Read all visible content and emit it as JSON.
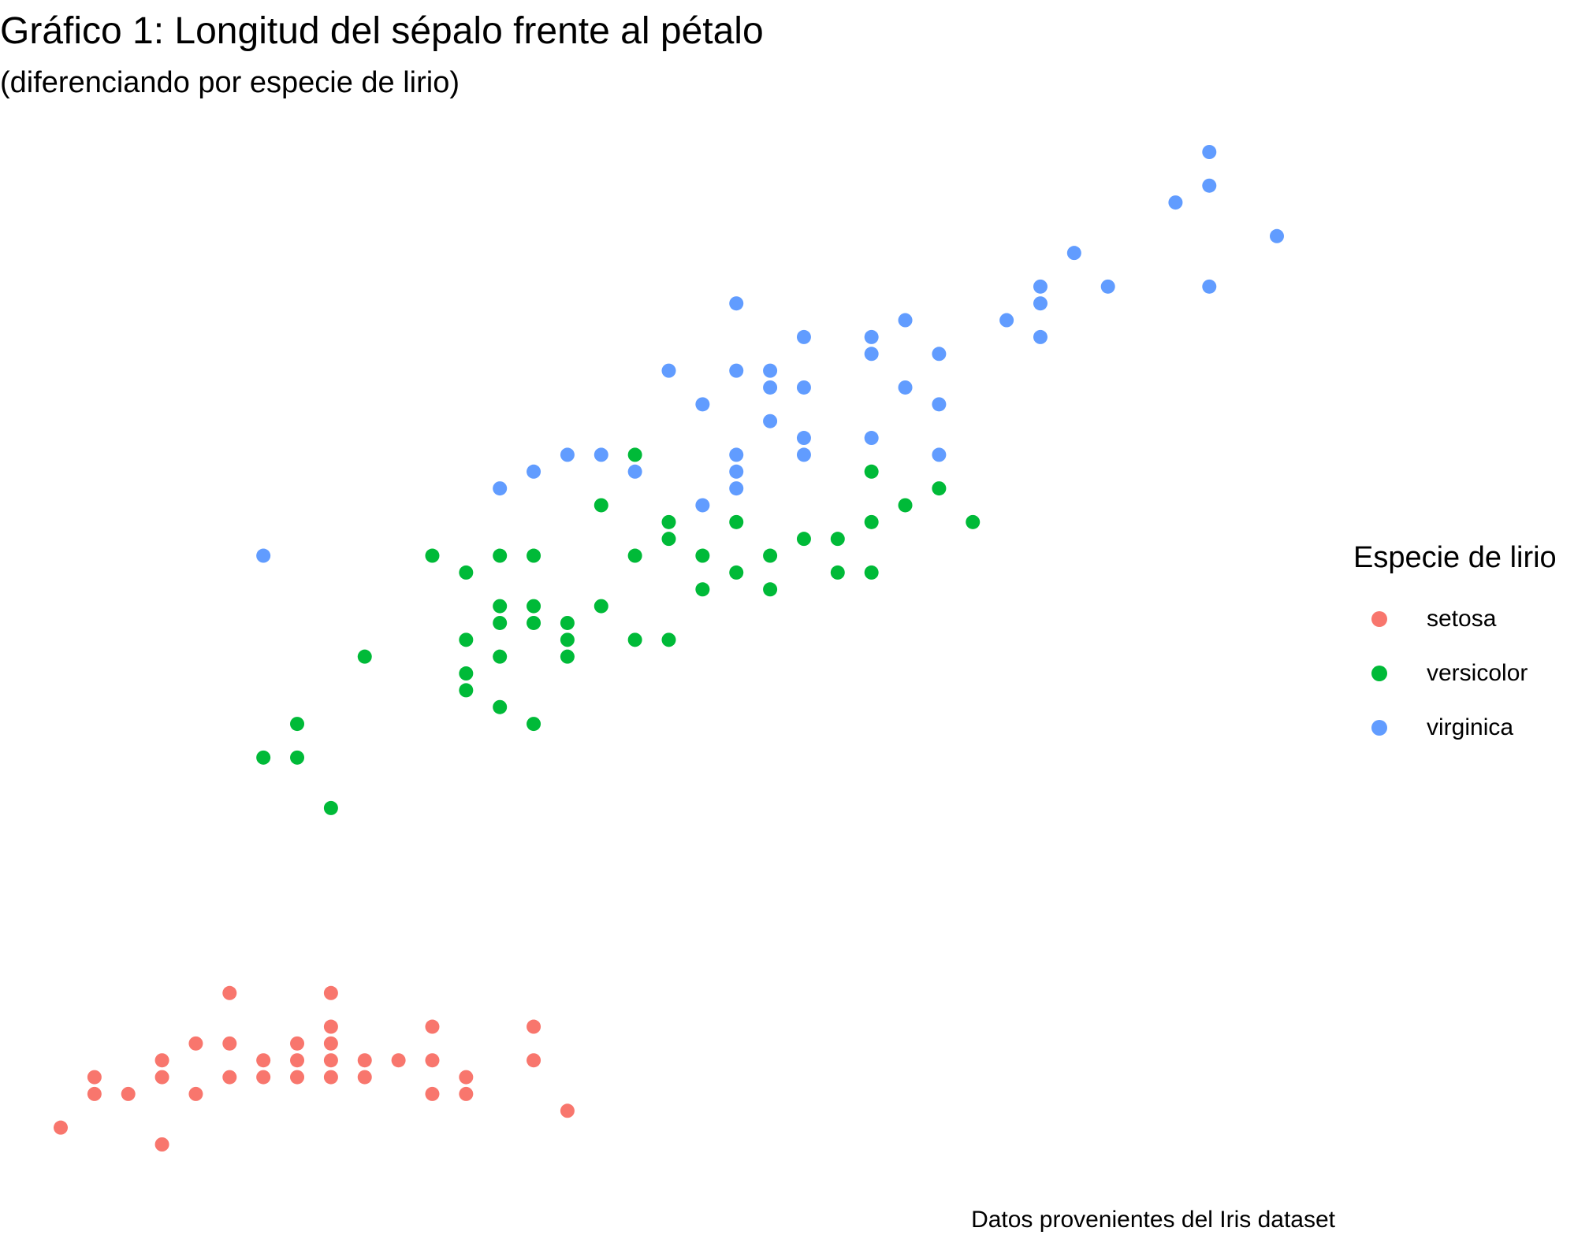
{
  "title": "Gráfico 1: Longitud del sépalo frente al pétalo",
  "subtitle": "(diferenciando por especie de lirio)",
  "caption": "Datos provenientes del Iris dataset",
  "legend": {
    "title": "Especie de lirio",
    "items": [
      {
        "label": "setosa",
        "color": "#F8766D"
      },
      {
        "label": "versicolor",
        "color": "#00BA38"
      },
      {
        "label": "virginica",
        "color": "#619CFF"
      }
    ]
  },
  "chart_data": {
    "type": "scatter",
    "title": "Gráfico 1: Longitud del sépalo frente al pétalo",
    "subtitle": "(diferenciando por especie de lirio)",
    "xlabel": "",
    "ylabel": "",
    "xlim": [
      4.3,
      7.9
    ],
    "ylim": [
      1.0,
      6.9
    ],
    "grid": false,
    "axes_visible": false,
    "legend_position": "right",
    "series": [
      {
        "name": "setosa",
        "color": "#F8766D",
        "points": [
          [
            4.3,
            1.1
          ],
          [
            4.4,
            1.3
          ],
          [
            4.4,
            1.4
          ],
          [
            4.5,
            1.3
          ],
          [
            4.6,
            1.0
          ],
          [
            4.6,
            1.4
          ],
          [
            4.6,
            1.5
          ],
          [
            4.7,
            1.3
          ],
          [
            4.7,
            1.6
          ],
          [
            4.8,
            1.4
          ],
          [
            4.8,
            1.6
          ],
          [
            4.8,
            1.9
          ],
          [
            4.9,
            1.4
          ],
          [
            4.9,
            1.5
          ],
          [
            5.0,
            1.4
          ],
          [
            5.0,
            1.5
          ],
          [
            5.0,
            1.6
          ],
          [
            5.1,
            1.4
          ],
          [
            5.1,
            1.5
          ],
          [
            5.1,
            1.6
          ],
          [
            5.1,
            1.7
          ],
          [
            5.1,
            1.9
          ],
          [
            5.2,
            1.4
          ],
          [
            5.2,
            1.5
          ],
          [
            5.3,
            1.5
          ],
          [
            5.4,
            1.3
          ],
          [
            5.4,
            1.5
          ],
          [
            5.4,
            1.7
          ],
          [
            5.5,
            1.3
          ],
          [
            5.5,
            1.4
          ],
          [
            5.7,
            1.5
          ],
          [
            5.7,
            1.7
          ],
          [
            5.8,
            1.2
          ]
        ]
      },
      {
        "name": "versicolor",
        "color": "#00BA38",
        "points": [
          [
            4.9,
            3.3
          ],
          [
            5.0,
            3.3
          ],
          [
            5.0,
            3.5
          ],
          [
            5.1,
            3.0
          ],
          [
            5.2,
            3.9
          ],
          [
            5.4,
            4.5
          ],
          [
            5.5,
            3.7
          ],
          [
            5.5,
            3.8
          ],
          [
            5.5,
            4.0
          ],
          [
            5.5,
            4.4
          ],
          [
            5.6,
            3.6
          ],
          [
            5.6,
            3.9
          ],
          [
            5.6,
            4.1
          ],
          [
            5.6,
            4.2
          ],
          [
            5.6,
            4.5
          ],
          [
            5.7,
            3.5
          ],
          [
            5.7,
            4.1
          ],
          [
            5.7,
            4.2
          ],
          [
            5.7,
            4.5
          ],
          [
            5.8,
            3.9
          ],
          [
            5.8,
            4.0
          ],
          [
            5.8,
            4.1
          ],
          [
            5.9,
            4.2
          ],
          [
            5.9,
            4.8
          ],
          [
            6.0,
            4.0
          ],
          [
            6.0,
            4.5
          ],
          [
            6.0,
            5.1
          ],
          [
            6.1,
            4.0
          ],
          [
            6.1,
            4.6
          ],
          [
            6.1,
            4.7
          ],
          [
            6.2,
            4.3
          ],
          [
            6.2,
            4.5
          ],
          [
            6.3,
            4.4
          ],
          [
            6.3,
            4.7
          ],
          [
            6.4,
            4.3
          ],
          [
            6.4,
            4.5
          ],
          [
            6.5,
            4.6
          ],
          [
            6.6,
            4.4
          ],
          [
            6.6,
            4.6
          ],
          [
            6.7,
            4.4
          ],
          [
            6.7,
            4.7
          ],
          [
            6.7,
            5.0
          ],
          [
            6.8,
            4.8
          ],
          [
            6.9,
            4.9
          ],
          [
            7.0,
            4.7
          ]
        ]
      },
      {
        "name": "virginica",
        "color": "#619CFF",
        "points": [
          [
            4.9,
            4.5
          ],
          [
            5.6,
            4.9
          ],
          [
            5.7,
            5.0
          ],
          [
            5.8,
            5.1
          ],
          [
            5.9,
            5.1
          ],
          [
            6.0,
            5.0
          ],
          [
            6.1,
            5.6
          ],
          [
            6.2,
            4.8
          ],
          [
            6.2,
            5.4
          ],
          [
            6.3,
            4.9
          ],
          [
            6.3,
            5.0
          ],
          [
            6.3,
            5.1
          ],
          [
            6.3,
            5.6
          ],
          [
            6.4,
            5.6
          ],
          [
            6.4,
            5.3
          ],
          [
            6.5,
            5.1
          ],
          [
            6.5,
            5.2
          ],
          [
            6.5,
            5.5
          ],
          [
            6.7,
            5.7
          ],
          [
            6.3,
            6.0
          ],
          [
            6.4,
            5.5
          ],
          [
            6.8,
            5.9
          ],
          [
            6.5,
            5.8
          ],
          [
            6.7,
            5.2
          ],
          [
            6.8,
            5.5
          ],
          [
            6.9,
            5.4
          ],
          [
            6.7,
            5.8
          ],
          [
            6.9,
            5.7
          ],
          [
            6.9,
            5.1
          ],
          [
            7.1,
            5.9
          ],
          [
            7.2,
            6.0
          ],
          [
            7.2,
            6.1
          ],
          [
            7.2,
            5.8
          ],
          [
            7.3,
            6.3
          ],
          [
            7.4,
            6.1
          ],
          [
            7.6,
            6.6
          ],
          [
            7.7,
            6.7
          ],
          [
            7.7,
            6.9
          ],
          [
            7.7,
            6.1
          ],
          [
            7.9,
            6.4
          ]
        ]
      }
    ]
  }
}
